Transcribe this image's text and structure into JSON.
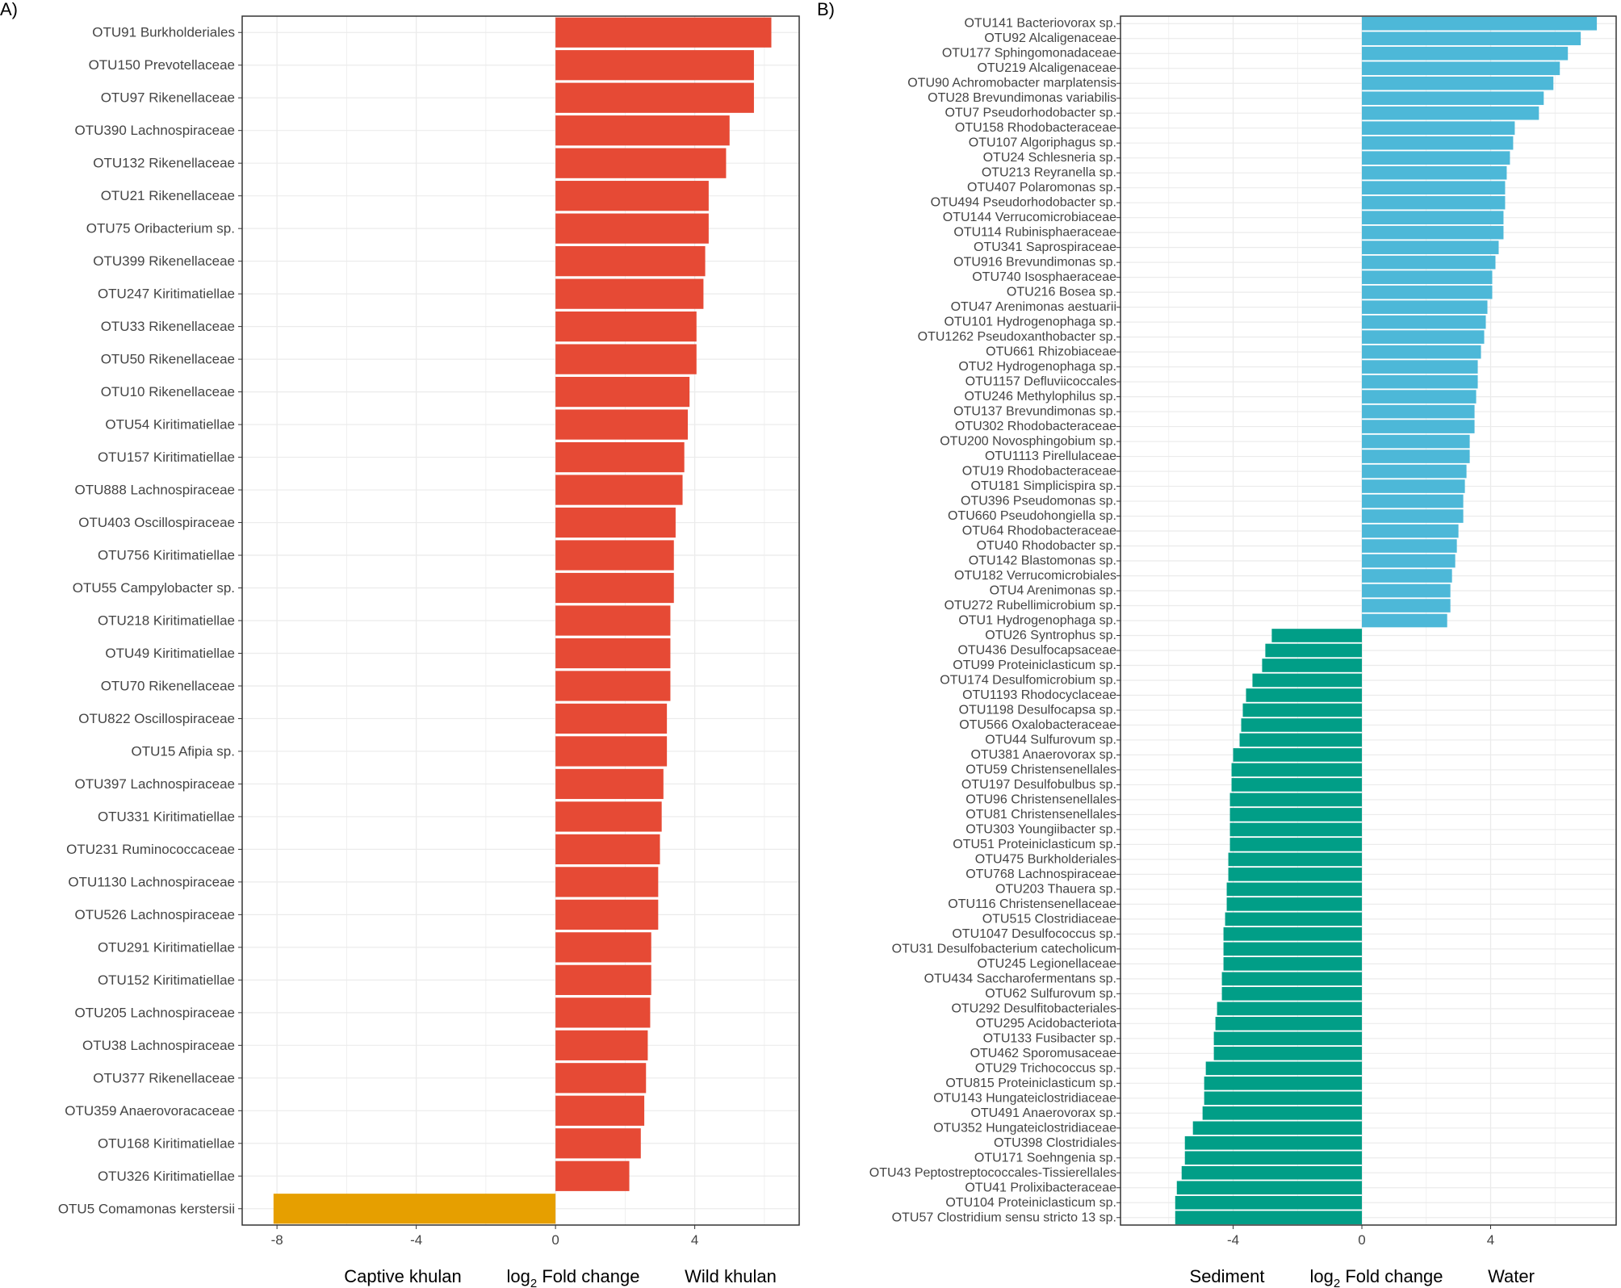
{
  "colors": {
    "wild": "#e64a35",
    "captive": "#e69f00",
    "water": "#4db8d8",
    "sediment": "#019e87",
    "grid": "#ebebeb",
    "panel_border": "#333333"
  },
  "chart_data": [
    {
      "id": "A",
      "panel_label": "A)",
      "type": "bar",
      "orientation": "horizontal",
      "xlabel": "log2 Fold change",
      "xlabel_parts": {
        "prefix": "log",
        "subscript": "2",
        "suffix": " Fold change"
      },
      "left_group": "Captive khulan",
      "right_group": "Wild khulan",
      "xlim": [
        -9.0,
        7.0
      ],
      "xticks": [
        -8,
        -4,
        0,
        4
      ],
      "grid": true,
      "categories": [
        "OTU91 Burkholderiales",
        "OTU150 Prevotellaceae",
        "OTU97 Rikenellaceae",
        "OTU390 Lachnospiraceae",
        "OTU132 Rikenellaceae",
        "OTU21 Rikenellaceae",
        "OTU75 Oribacterium sp.",
        "OTU399 Rikenellaceae",
        "OTU247 Kiritimatiellae",
        "OTU33 Rikenellaceae",
        "OTU50 Rikenellaceae",
        "OTU10 Rikenellaceae",
        "OTU54 Kiritimatiellae",
        "OTU157 Kiritimatiellae",
        "OTU888 Lachnospiraceae",
        "OTU403 Oscillospiraceae",
        "OTU756 Kiritimatiellae",
        "OTU55 Campylobacter sp.",
        "OTU218 Kiritimatiellae",
        "OTU49 Kiritimatiellae",
        "OTU70 Rikenellaceae",
        "OTU822 Oscillospiraceae",
        "OTU15 Afipia sp.",
        "OTU397 Lachnospiraceae",
        "OTU331 Kiritimatiellae",
        "OTU231 Ruminococcaceae",
        "OTU1130 Lachnospiraceae",
        "OTU526 Lachnospiraceae",
        "OTU291 Kiritimatiellae",
        "OTU152 Kiritimatiellae",
        "OTU205 Lachnospiraceae",
        "OTU38 Lachnospiraceae",
        "OTU377 Rikenellaceae",
        "OTU359 Anaerovoracaceae",
        "OTU168 Kiritimatiellae",
        "OTU326 Kiritimatiellae",
        "OTU5 Comamonas kerstersii"
      ],
      "values": [
        6.2,
        5.7,
        5.7,
        5.0,
        4.9,
        4.4,
        4.4,
        4.3,
        4.25,
        4.05,
        4.05,
        3.85,
        3.8,
        3.7,
        3.65,
        3.45,
        3.4,
        3.4,
        3.3,
        3.3,
        3.3,
        3.2,
        3.2,
        3.1,
        3.05,
        3.0,
        2.95,
        2.95,
        2.75,
        2.75,
        2.72,
        2.65,
        2.6,
        2.55,
        2.45,
        2.12,
        -8.1
      ]
    },
    {
      "id": "B",
      "panel_label": "B)",
      "type": "bar",
      "orientation": "horizontal",
      "xlabel": "log2 Fold change",
      "xlabel_parts": {
        "prefix": "log",
        "subscript": "2",
        "suffix": " Fold change"
      },
      "left_group": "Sediment",
      "right_group": "Water",
      "xlim": [
        -7.5,
        7.9
      ],
      "xticks": [
        -4,
        0,
        4
      ],
      "grid": true,
      "categories": [
        "OTU141 Bacteriovorax sp.",
        "OTU92 Alcaligenaceae",
        "OTU177 Sphingomonadaceae",
        "OTU219 Alcaligenaceae",
        "OTU90 Achromobacter marplatensis",
        "OTU28 Brevundimonas variabilis",
        "OTU7 Pseudorhodobacter sp.",
        "OTU158 Rhodobacteraceae",
        "OTU107 Algoriphagus sp.",
        "OTU24 Schlesneria sp.",
        "OTU213 Reyranella sp.",
        "OTU407 Polaromonas sp.",
        "OTU494 Pseudorhodobacter sp.",
        "OTU144 Verrucomicrobiaceae",
        "OTU114 Rubinisphaeraceae",
        "OTU341 Saprospiraceae",
        "OTU916 Brevundimonas sp.",
        "OTU740 Isosphaeraceae",
        "OTU216 Bosea sp.",
        "OTU47 Arenimonas aestuarii",
        "OTU101 Hydrogenophaga sp.",
        "OTU1262 Pseudoxanthobacter sp.",
        "OTU661 Rhizobiaceae",
        "OTU2 Hydrogenophaga sp.",
        "OTU1157 Defluviicoccales",
        "OTU246 Methylophilus sp.",
        "OTU137 Brevundimonas sp.",
        "OTU302 Rhodobacteraceae",
        "OTU200 Novosphingobium sp.",
        "OTU1113 Pirellulaceae",
        "OTU19 Rhodobacteraceae",
        "OTU181 Simplicispira sp.",
        "OTU396 Pseudomonas sp.",
        "OTU660 Pseudohongiella sp.",
        "OTU64 Rhodobacteraceae",
        "OTU40 Rhodobacter sp.",
        "OTU142 Blastomonas sp.",
        "OTU182 Verrucomicrobiales",
        "OTU4 Arenimonas sp.",
        "OTU272 Rubellimicrobium sp.",
        "OTU1 Hydrogenophaga sp.",
        "OTU26 Syntrophus sp.",
        "OTU436 Desulfocapsaceae",
        "OTU99 Proteiniclasticum sp.",
        "OTU174 Desulfomicrobium sp.",
        "OTU1193 Rhodocyclaceae",
        "OTU1198 Desulfocapsa sp.",
        "OTU566 Oxalobacteraceae",
        "OTU44 Sulfurovum sp.",
        "OTU381 Anaerovorax sp.",
        "OTU59 Christensenellales",
        "OTU197 Desulfobulbus sp.",
        "OTU96 Christensenellales",
        "OTU81 Christensenellales",
        "OTU303 Youngiibacter sp.",
        "OTU51 Proteiniclasticum sp.",
        "OTU475 Burkholderiales",
        "OTU768 Lachnospiraceae",
        "OTU203 Thauera sp.",
        "OTU116 Christensenellaceae",
        "OTU515 Clostridiaceae",
        "OTU1047 Desulfococcus sp.",
        "OTU31 Desulfobacterium catecholicum",
        "OTU245 Legionellaceae",
        "OTU434 Saccharofermentans sp.",
        "OTU62 Sulfurovum sp.",
        "OTU292 Desulfitobacteriales",
        "OTU295 Acidobacteriota",
        "OTU133 Fusibacter sp.",
        "OTU462 Sporomusaceae",
        "OTU29 Trichococcus sp.",
        "OTU815 Proteiniclasticum sp.",
        "OTU143 Hungateiclostridiaceae",
        "OTU491 Anaerovorax sp.",
        "OTU352 Hungateiclostridiaceae",
        "OTU398 Clostridiales",
        "OTU171 Soehngenia sp.",
        "OTU43 Peptostreptococcales-Tissierellales",
        "OTU41 Prolixibacteraceae",
        "OTU104 Proteiniclasticum sp.",
        "OTU57 Clostridium sensu stricto 13 sp."
      ],
      "values": [
        7.3,
        6.8,
        6.4,
        6.15,
        5.95,
        5.65,
        5.5,
        4.75,
        4.7,
        4.6,
        4.5,
        4.45,
        4.45,
        4.4,
        4.4,
        4.25,
        4.15,
        4.05,
        4.05,
        3.9,
        3.85,
        3.8,
        3.7,
        3.6,
        3.6,
        3.55,
        3.5,
        3.5,
        3.35,
        3.35,
        3.25,
        3.2,
        3.15,
        3.15,
        3.0,
        2.95,
        2.9,
        2.8,
        2.75,
        2.75,
        2.65,
        -2.8,
        -3.0,
        -3.1,
        -3.4,
        -3.6,
        -3.7,
        -3.75,
        -3.8,
        -4.0,
        -4.05,
        -4.05,
        -4.1,
        -4.1,
        -4.1,
        -4.1,
        -4.15,
        -4.15,
        -4.2,
        -4.2,
        -4.25,
        -4.3,
        -4.3,
        -4.3,
        -4.35,
        -4.35,
        -4.5,
        -4.55,
        -4.6,
        -4.6,
        -4.85,
        -4.9,
        -4.9,
        -4.95,
        -5.25,
        -5.5,
        -5.5,
        -5.6,
        -5.75,
        -5.8,
        -5.8
      ]
    }
  ]
}
